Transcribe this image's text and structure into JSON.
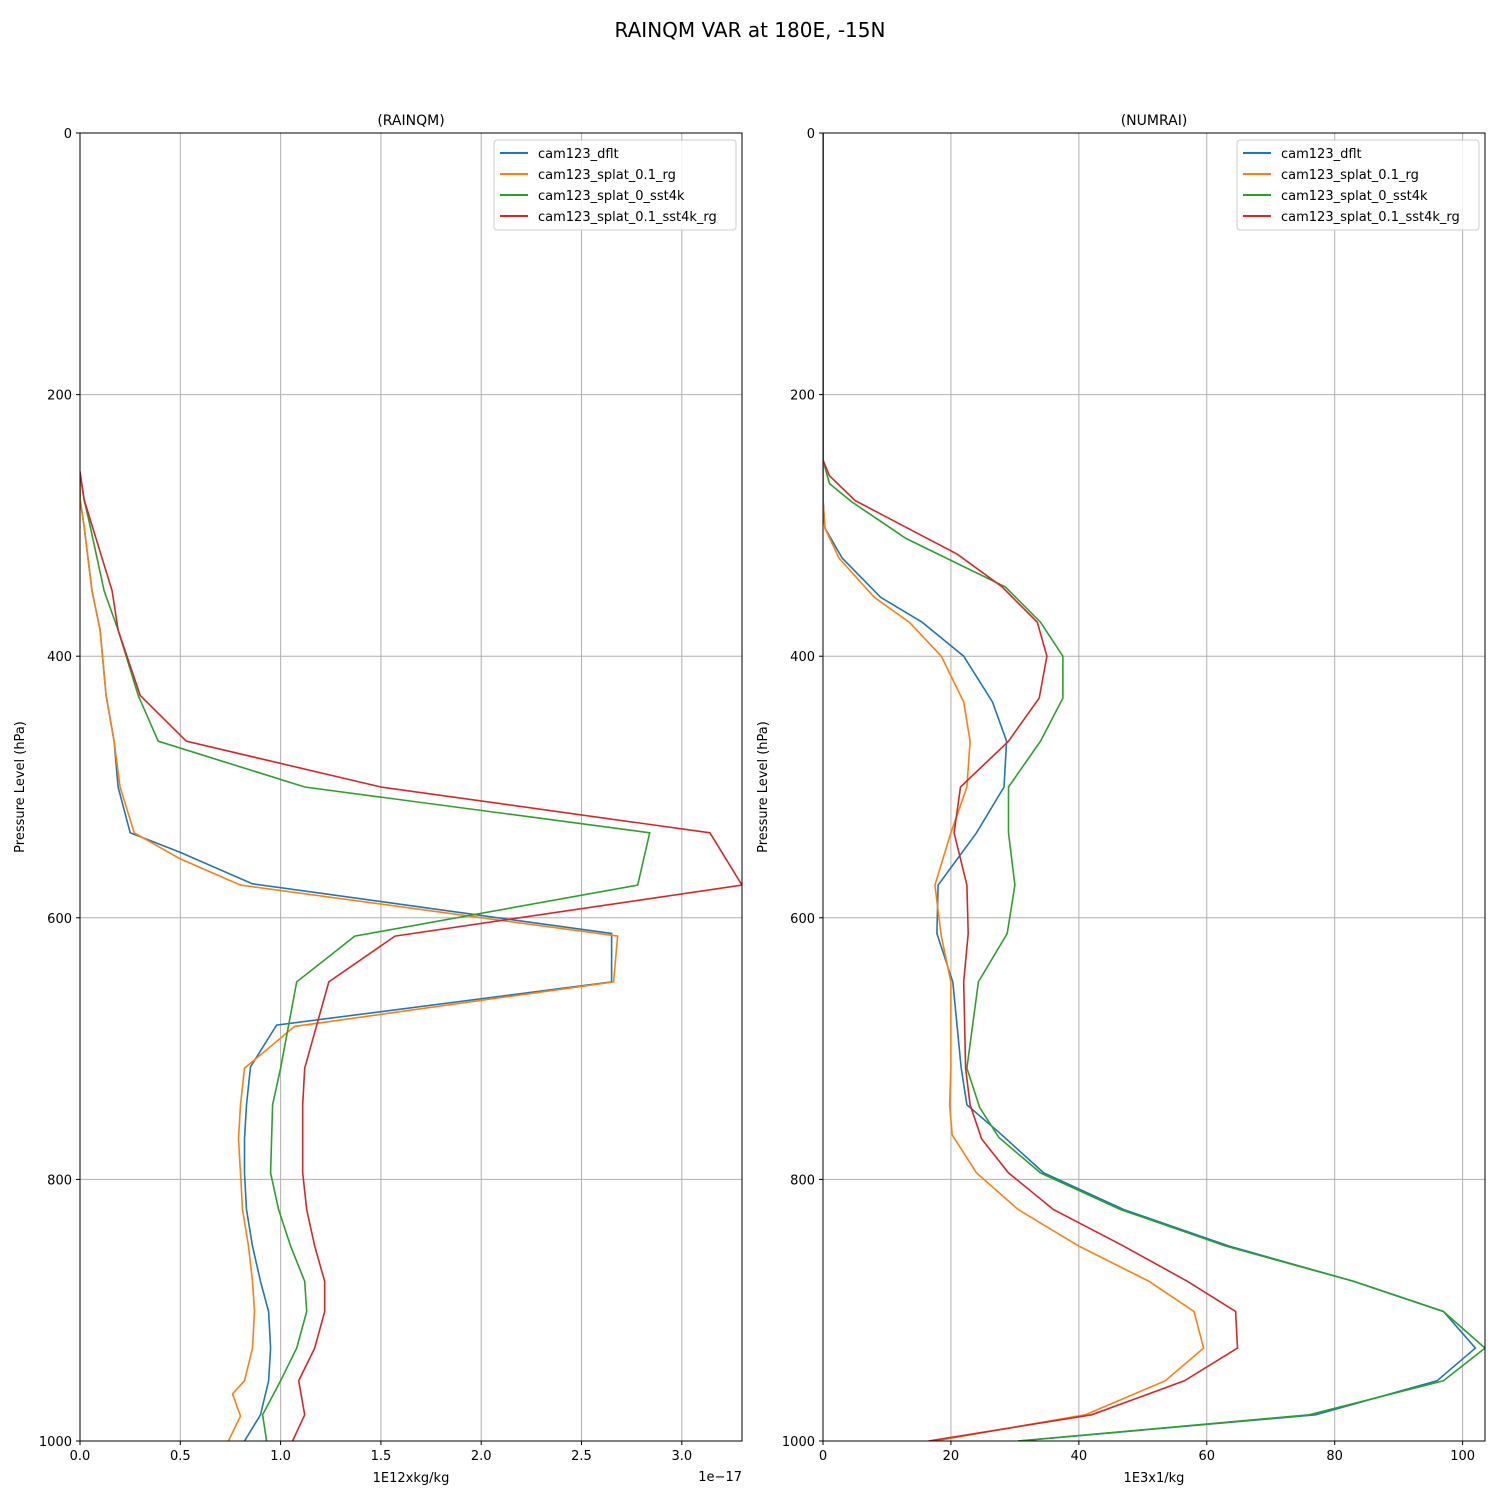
{
  "figure": {
    "title": "RAINQM VAR at 180E, -15N"
  },
  "colors": {
    "series": [
      "#1f77b4",
      "#ff7f0e",
      "#2ca02c",
      "#d62728"
    ],
    "grid": "#b0b0b0"
  },
  "chart_data": [
    {
      "type": "line",
      "title": "(RAINQM)",
      "xlabel": "1E12xkg/kg",
      "ylabel": "Pressure Level (hPa)",
      "x_offset_label": "1e−17",
      "xlim": [
        0,
        3.3
      ],
      "ylim": [
        1000,
        0
      ],
      "y_inverted": true,
      "grid": true,
      "legend_position": "top-right",
      "xticks": [
        0,
        0.5,
        1.0,
        1.5,
        2.0,
        2.5,
        3.0
      ],
      "xtick_labels": [
        "0.0",
        "0.5",
        "1.0",
        "1.5",
        "2.0",
        "2.5",
        "3.0"
      ],
      "yticks": [
        0,
        200,
        400,
        600,
        800,
        1000
      ],
      "ytick_labels": [
        "0",
        "200",
        "400",
        "600",
        "800",
        "1000"
      ],
      "series": [
        {
          "name": "cam123_dflt",
          "points": [
            [
              0,
              259
            ],
            [
              0,
              280
            ],
            [
              0.02,
              300
            ],
            [
              0.06,
              350
            ],
            [
              0.1,
              380
            ],
            [
              0.13,
              430
            ],
            [
              0.17,
              465
            ],
            [
              0.19,
              500
            ],
            [
              0.25,
              535
            ],
            [
              0.5,
              550
            ],
            [
              0.86,
              574
            ],
            [
              2.65,
              612
            ],
            [
              2.65,
              649
            ],
            [
              0.98,
              682
            ],
            [
              0.85,
              714
            ],
            [
              0.83,
              743
            ],
            [
              0.82,
              769
            ],
            [
              0.82,
              795
            ],
            [
              0.83,
              823
            ],
            [
              0.86,
              851
            ],
            [
              0.9,
              878
            ],
            [
              0.94,
              901
            ],
            [
              0.95,
              929
            ],
            [
              0.94,
              954
            ],
            [
              0.9,
              980
            ],
            [
              0.82,
              1000
            ]
          ]
        },
        {
          "name": "cam123_splat_0.1_rg",
          "points": [
            [
              0,
              259
            ],
            [
              0,
              280
            ],
            [
              0.02,
              300
            ],
            [
              0.06,
              350
            ],
            [
              0.1,
              380
            ],
            [
              0.13,
              430
            ],
            [
              0.17,
              465
            ],
            [
              0.2,
              500
            ],
            [
              0.27,
              535
            ],
            [
              0.5,
              555
            ],
            [
              0.8,
              575
            ],
            [
              2.68,
              614
            ],
            [
              2.66,
              649
            ],
            [
              1.07,
              683
            ],
            [
              0.82,
              715
            ],
            [
              0.8,
              743
            ],
            [
              0.79,
              769
            ],
            [
              0.8,
              795
            ],
            [
              0.81,
              823
            ],
            [
              0.84,
              851
            ],
            [
              0.86,
              878
            ],
            [
              0.87,
              901
            ],
            [
              0.86,
              929
            ],
            [
              0.82,
              954
            ],
            [
              0.76,
              964
            ],
            [
              0.8,
              981
            ],
            [
              0.74,
              1000
            ]
          ]
        },
        {
          "name": "cam123_splat_0_sst4k",
          "points": [
            [
              0,
              259
            ],
            [
              0.02,
              280
            ],
            [
              0.05,
              300
            ],
            [
              0.12,
              350
            ],
            [
              0.19,
              380
            ],
            [
              0.29,
              430
            ],
            [
              0.39,
              465
            ],
            [
              1.12,
              500
            ],
            [
              2.84,
              535
            ],
            [
              2.78,
              575
            ],
            [
              1.37,
              614
            ],
            [
              1.08,
              649
            ],
            [
              1.0,
              715
            ],
            [
              0.96,
              743
            ],
            [
              0.95,
              795
            ],
            [
              0.99,
              823
            ],
            [
              1.05,
              851
            ],
            [
              1.12,
              878
            ],
            [
              1.13,
              901
            ],
            [
              1.08,
              929
            ],
            [
              1.0,
              954
            ],
            [
              0.91,
              980
            ],
            [
              0.93,
              1000
            ]
          ]
        },
        {
          "name": "cam123_splat_0.1_sst4k_rg",
          "points": [
            [
              0,
              259
            ],
            [
              0.02,
              280
            ],
            [
              0.06,
              300
            ],
            [
              0.16,
              350
            ],
            [
              0.19,
              380
            ],
            [
              0.3,
              430
            ],
            [
              0.53,
              465
            ],
            [
              1.5,
              500
            ],
            [
              3.14,
              535
            ],
            [
              3.3,
              575
            ],
            [
              1.57,
              614
            ],
            [
              1.24,
              649
            ],
            [
              1.12,
              715
            ],
            [
              1.11,
              743
            ],
            [
              1.11,
              795
            ],
            [
              1.13,
              823
            ],
            [
              1.17,
              851
            ],
            [
              1.22,
              878
            ],
            [
              1.22,
              901
            ],
            [
              1.17,
              929
            ],
            [
              1.09,
              954
            ],
            [
              1.12,
              980
            ],
            [
              1.06,
              1000
            ]
          ]
        }
      ]
    },
    {
      "type": "line",
      "title": "(NUMRAI)",
      "xlabel": "1E3x1/kg",
      "ylabel": "Pressure Level (hPa)",
      "xlim": [
        0,
        103.5
      ],
      "ylim": [
        1000,
        0
      ],
      "y_inverted": true,
      "grid": true,
      "legend_position": "top-right",
      "xticks": [
        0,
        20,
        40,
        60,
        80,
        100
      ],
      "xtick_labels": [
        "0",
        "20",
        "40",
        "60",
        "80",
        "100"
      ],
      "yticks": [
        0,
        200,
        400,
        600,
        800,
        1000
      ],
      "ytick_labels": [
        "0",
        "200",
        "400",
        "600",
        "800",
        "1000"
      ],
      "series": [
        {
          "name": "cam123_dflt",
          "points": [
            [
              0,
              0
            ],
            [
              0,
              250
            ],
            [
              0,
              280
            ],
            [
              0.3,
              302
            ],
            [
              3,
              325
            ],
            [
              9,
              355
            ],
            [
              15.5,
              374
            ],
            [
              22,
              400
            ],
            [
              26.5,
              435
            ],
            [
              28.7,
              465
            ],
            [
              28.3,
              500
            ],
            [
              24,
              535
            ],
            [
              18,
              575
            ],
            [
              17.8,
              612
            ],
            [
              20.3,
              649
            ],
            [
              21.6,
              715
            ],
            [
              22.5,
              743
            ],
            [
              27.5,
              764
            ],
            [
              34.5,
              795
            ],
            [
              47,
              823
            ],
            [
              63.5,
              851
            ],
            [
              83,
              878
            ],
            [
              97,
              901
            ],
            [
              102,
              929
            ],
            [
              96,
              954
            ],
            [
              77,
              980
            ],
            [
              30.5,
              1000
            ]
          ]
        },
        {
          "name": "cam123_splat_0.1_rg",
          "points": [
            [
              0,
              0
            ],
            [
              0,
              250
            ],
            [
              0,
              280
            ],
            [
              0.3,
              302
            ],
            [
              2.5,
              325
            ],
            [
              8,
              355
            ],
            [
              13.5,
              374
            ],
            [
              18.5,
              400
            ],
            [
              22,
              435
            ],
            [
              23,
              465
            ],
            [
              22.5,
              500
            ],
            [
              20,
              535
            ],
            [
              17.5,
              575
            ],
            [
              18.5,
              614
            ],
            [
              20,
              649
            ],
            [
              20,
              715
            ],
            [
              19.8,
              743
            ],
            [
              20.2,
              766
            ],
            [
              24,
              795
            ],
            [
              30.5,
              823
            ],
            [
              40,
              851
            ],
            [
              51,
              878
            ],
            [
              58,
              901
            ],
            [
              59.5,
              929
            ],
            [
              53.5,
              954
            ],
            [
              41,
              980
            ],
            [
              17.5,
              1000
            ]
          ]
        },
        {
          "name": "cam123_splat_0_sst4k",
          "points": [
            [
              0,
              0
            ],
            [
              0,
              250
            ],
            [
              1,
              268
            ],
            [
              4.5,
              282
            ],
            [
              13,
              310
            ],
            [
              28.5,
              347
            ],
            [
              34,
              374
            ],
            [
              37.5,
              400
            ],
            [
              37.5,
              432
            ],
            [
              34,
              465
            ],
            [
              29,
              500
            ],
            [
              29,
              535
            ],
            [
              30,
              575
            ],
            [
              28.8,
              612
            ],
            [
              24.3,
              649
            ],
            [
              22.5,
              715
            ],
            [
              24.5,
              745
            ],
            [
              27.5,
              768
            ],
            [
              34,
              795
            ],
            [
              46.5,
              823
            ],
            [
              63,
              851
            ],
            [
              83,
              878
            ],
            [
              97,
              901
            ],
            [
              103.5,
              929
            ],
            [
              97,
              954
            ],
            [
              76,
              980
            ],
            [
              30.5,
              1000
            ]
          ]
        },
        {
          "name": "cam123_splat_0.1_sst4k_rg",
          "points": [
            [
              0,
              0
            ],
            [
              0,
              250
            ],
            [
              1,
              262
            ],
            [
              5,
              281
            ],
            [
              21,
              322
            ],
            [
              28,
              347
            ],
            [
              33.5,
              374
            ],
            [
              35,
              400
            ],
            [
              33.8,
              432
            ],
            [
              29,
              465
            ],
            [
              21.5,
              500
            ],
            [
              20.5,
              535
            ],
            [
              22.5,
              575
            ],
            [
              22.7,
              612
            ],
            [
              22,
              649
            ],
            [
              22.3,
              715
            ],
            [
              23,
              743
            ],
            [
              24.8,
              769
            ],
            [
              29,
              795
            ],
            [
              36,
              823
            ],
            [
              47,
              851
            ],
            [
              57,
              878
            ],
            [
              64.5,
              901
            ],
            [
              64.8,
              929
            ],
            [
              56.5,
              954
            ],
            [
              42,
              980
            ],
            [
              16.5,
              1000
            ]
          ]
        }
      ]
    }
  ]
}
